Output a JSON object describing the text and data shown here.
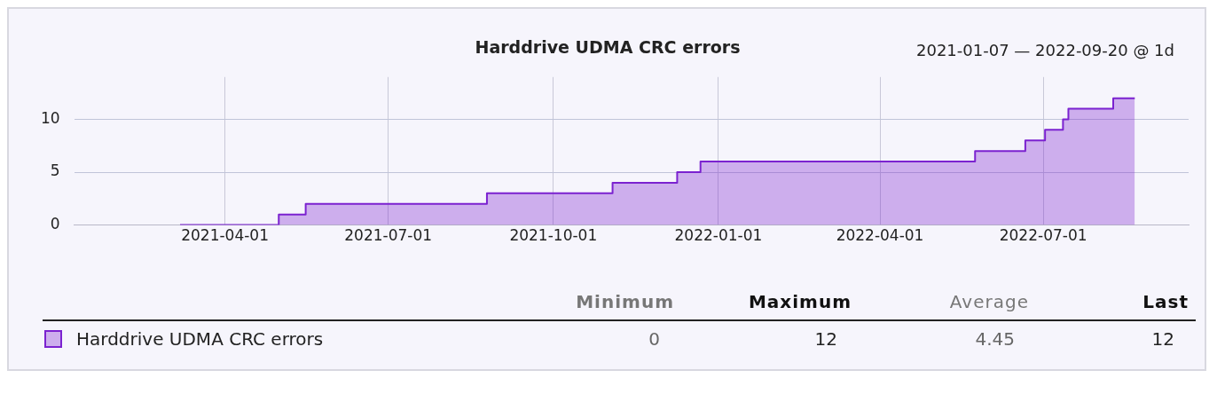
{
  "chart_data": {
    "type": "step",
    "title": "Harddrive UDMA CRC errors",
    "subtitle": "2021-01-07 — 2022-09-20 @ 1d",
    "x": [
      "2021-03-07",
      "2021-05-01",
      "2021-05-16",
      "2021-08-25",
      "2021-11-03",
      "2021-12-09",
      "2021-12-22",
      "2022-05-24",
      "2022-06-21",
      "2022-07-02",
      "2022-07-12",
      "2022-07-15",
      "2022-08-09",
      "2022-08-21"
    ],
    "series": [
      {
        "name": "Harddrive UDMA CRC errors",
        "color": "#7b22d0",
        "values": [
          0,
          1,
          2,
          3,
          4,
          5,
          6,
          7,
          8,
          9,
          10,
          11,
          12,
          12
        ]
      }
    ],
    "xlim": [
      "2021-01-07",
      "2022-09-20"
    ],
    "xticks": [
      "2021-04-01",
      "2021-07-01",
      "2021-10-01",
      "2022-01-01",
      "2022-04-01",
      "2022-07-01"
    ],
    "ylim": [
      0,
      14
    ],
    "yticks": [
      0,
      5,
      10
    ],
    "grid": true,
    "legend": "bottom",
    "annotations": [
      "Minimum",
      "Maximum",
      "Average",
      "Last",
      "0",
      "12",
      "4.45",
      "12"
    ]
  }
}
